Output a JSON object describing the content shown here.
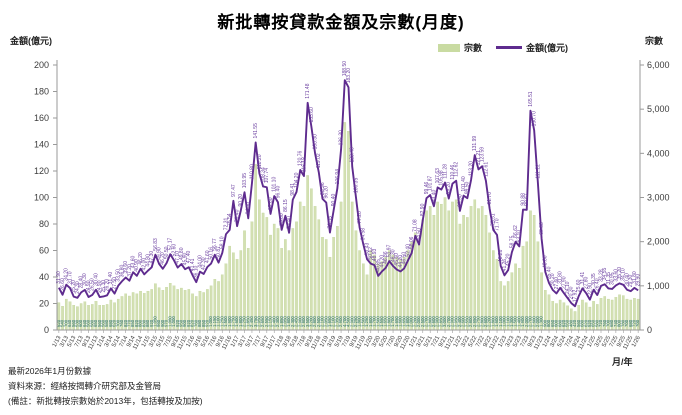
{
  "title": "新批轉按貸款金額及宗數(月度)",
  "left_axis": {
    "title": "金額(億元)",
    "min": 0,
    "max": 200,
    "step": 20
  },
  "right_axis": {
    "title": "宗數",
    "min": 0,
    "max": 6000,
    "step": 1000
  },
  "x_axis_title": "月/年",
  "legend": [
    {
      "label": "宗數",
      "type": "bar",
      "color": "#c9dba2"
    },
    {
      "label": "金額(億元)",
      "type": "line",
      "color": "#5e2b8e"
    }
  ],
  "footnotes": [
    "最新2026年1月份數據",
    "資料來源：經絡按揭轉介研究部及金管局",
    "(備註：新批轉按宗數始於2013年，包括轉按及加按)"
  ],
  "colors": {
    "bar_fill": "#d3e0b2",
    "bar_stroke": "#bcd194",
    "bar_label": "#2a6f70",
    "line": "#5e2b8e",
    "line_label": "#6b3fa0",
    "axis": "#9a9a9a",
    "tick_text": "#3c3c3c"
  },
  "chart_data": {
    "type": "bar+line",
    "x_tick_every": 2,
    "x": [
      "1/13",
      "2/13",
      "3/13",
      "4/13",
      "5/13",
      "6/13",
      "7/13",
      "8/13",
      "9/13",
      "10/13",
      "11/13",
      "12/13",
      "1/14",
      "2/14",
      "3/14",
      "4/14",
      "5/14",
      "6/14",
      "7/14",
      "8/14",
      "9/14",
      "10/14",
      "11/14",
      "12/14",
      "1/15",
      "2/15",
      "3/15",
      "4/15",
      "5/15",
      "6/15",
      "7/15",
      "8/15",
      "9/15",
      "10/15",
      "11/15",
      "12/15",
      "1/16",
      "2/16",
      "3/16",
      "4/16",
      "5/16",
      "6/16",
      "7/16",
      "8/16",
      "9/16",
      "10/16",
      "11/16",
      "12/16",
      "1/17",
      "2/17",
      "3/17",
      "4/17",
      "5/17",
      "6/17",
      "7/17",
      "8/17",
      "9/17",
      "10/17",
      "11/17",
      "12/17",
      "1/18",
      "2/18",
      "3/18",
      "4/18",
      "5/18",
      "6/18",
      "7/18",
      "8/18",
      "9/18",
      "10/18",
      "11/18",
      "12/18",
      "1/19",
      "2/19",
      "3/19",
      "4/19",
      "5/19",
      "6/19",
      "7/19",
      "8/19",
      "9/19",
      "10/19",
      "11/19",
      "12/19",
      "1/20",
      "2/20",
      "3/20",
      "4/20",
      "5/20",
      "6/20",
      "7/20",
      "8/20",
      "9/20",
      "10/20",
      "11/20",
      "12/20",
      "1/21",
      "2/21",
      "3/21",
      "4/21",
      "5/21",
      "6/21",
      "7/21",
      "8/21",
      "9/21",
      "10/21",
      "11/21",
      "12/21",
      "1/22",
      "2/22",
      "3/22",
      "4/22",
      "5/22",
      "6/22",
      "7/22",
      "8/22",
      "9/22",
      "10/22",
      "11/22",
      "12/22",
      "1/23",
      "2/23",
      "3/23",
      "4/23",
      "5/23",
      "6/23",
      "7/23",
      "8/23",
      "9/23",
      "10/23",
      "11/23",
      "12/23",
      "1/24",
      "2/24",
      "3/24",
      "4/24",
      "5/24",
      "6/24",
      "7/24",
      "8/24",
      "9/24",
      "10/24",
      "11/24",
      "12/24",
      "1/25",
      "2/25",
      "3/25",
      "4/25",
      "5/25",
      "6/25",
      "7/25",
      "8/25",
      "9/25",
      "10/25",
      "11/25",
      "12/25",
      "1/26"
    ],
    "series": [
      {
        "name": "宗數",
        "type": "bar",
        "axis": "right",
        "values": [
          620,
          540,
          700,
          640,
          560,
          530,
          600,
          640,
          560,
          580,
          650,
          560,
          560,
          580,
          680,
          620,
          700,
          760,
          820,
          770,
          850,
          820,
          880,
          830,
          880,
          920,
          1050,
          960,
          900,
          970,
          1060,
          1000,
          920,
          950,
          900,
          920,
          820,
          760,
          880,
          850,
          920,
          1000,
          1150,
          1100,
          1250,
          1500,
          1900,
          1750,
          1600,
          1800,
          2250,
          1850,
          2450,
          3750,
          2950,
          2650,
          2550,
          2150,
          2400,
          2300,
          1850,
          2050,
          1800,
          2300,
          2450,
          2900,
          2800,
          3500,
          3200,
          2800,
          2500,
          2100,
          2050,
          1650,
          2100,
          2350,
          2900,
          4700,
          4500,
          2900,
          2250,
          1800,
          1500,
          1250,
          1800,
          1700,
          1500,
          1550,
          1650,
          1800,
          1700,
          1650,
          1600,
          1650,
          1800,
          2000,
          2200,
          2000,
          2500,
          2700,
          2800,
          2600,
          2900,
          2850,
          3000,
          2700,
          2900,
          2950,
          2400,
          2600,
          2550,
          2800,
          2950,
          2750,
          2800,
          2600,
          2200,
          1800,
          1600,
          1100,
          1000,
          1100,
          1300,
          1500,
          1400,
          1900,
          2000,
          2700,
          2600,
          2000,
          1300,
          900,
          800,
          650,
          600,
          680,
          620,
          550,
          480,
          420,
          560,
          680,
          620,
          520,
          650,
          580,
          720,
          760,
          700,
          680,
          740,
          800,
          780,
          700,
          680,
          720,
          700
        ]
      },
      {
        "name": "金額(億元)",
        "type": "line",
        "axis": "left",
        "values": [
          31.9,
          26.6,
          34.2,
          31.7,
          25.2,
          24.3,
          28.4,
          30.3,
          24.9,
          26.5,
          30.4,
          24.9,
          25.3,
          26.2,
          31.4,
          27.5,
          33.5,
          36.8,
          39.6,
          37.2,
          43.6,
          40.9,
          46.2,
          42.0,
          44.8,
          47.3,
          56.83,
          49.9,
          46.2,
          50.5,
          57.17,
          52.6,
          47.1,
          49.8,
          45.9,
          47.4,
          41.41,
          36.1,
          44.0,
          42.3,
          47.6,
          50.16,
          56.77,
          50.87,
          58.1,
          72.31,
          75.54,
          97.47,
          78.4,
          90.2,
          103.95,
          84.3,
          110.8,
          141.55,
          118.2,
          108.34,
          107.74,
          87.6,
          101.1,
          96.4,
          75.6,
          86.15,
          73.4,
          98.41,
          104.2,
          120.76,
          116.18,
          171.48,
          153.6,
          133.3,
          119.02,
          98.96,
          96.2,
          73.55,
          90.4,
          106.94,
          136.3,
          188.5,
          183.2,
          123.4,
          100.35,
          77.2,
          64.58,
          53.43,
          50.12,
          48.93,
          40.85,
          44.2,
          46.86,
          51.97,
          48.3,
          45.6,
          44.2,
          46.5,
          52.4,
          58.06,
          71.08,
          64.5,
          82.9,
          99.46,
          101.87,
          93.4,
          107.63,
          105.98,
          111.28,
          99.2,
          110.46,
          112.62,
          89.9,
          101.4,
          99.5,
          113.2,
          131.99,
          121.21,
          123.59,
          112.61,
          91.7,
          75.51,
          71.7,
          48.26,
          41.26,
          45.2,
          58.75,
          66.62,
          63.1,
          90.88,
          90.67,
          165.51,
          150.7,
          111.22,
          68.88,
          43.8,
          35.4,
          30.2,
          27.6,
          31.8,
          27.9,
          24.1,
          20.3,
          17.92,
          25.6,
          31.41,
          27.8,
          22.9,
          30.35,
          26.4,
          33.28,
          34.55,
          31.35,
          30.95,
          33.6,
          35.2,
          34.1,
          30.4,
          29.3,
          31.8,
          29.9
        ]
      }
    ],
    "title": "新批轉按貸款金額及宗數(月度)",
    "xlabel": "月/年",
    "ylabel_left": "金額(億元)",
    "ylabel_right": "宗數",
    "ylim_left": [
      0,
      200
    ],
    "ylim_right": [
      0,
      6000
    ],
    "grid": false,
    "legend_position": "top-right"
  }
}
